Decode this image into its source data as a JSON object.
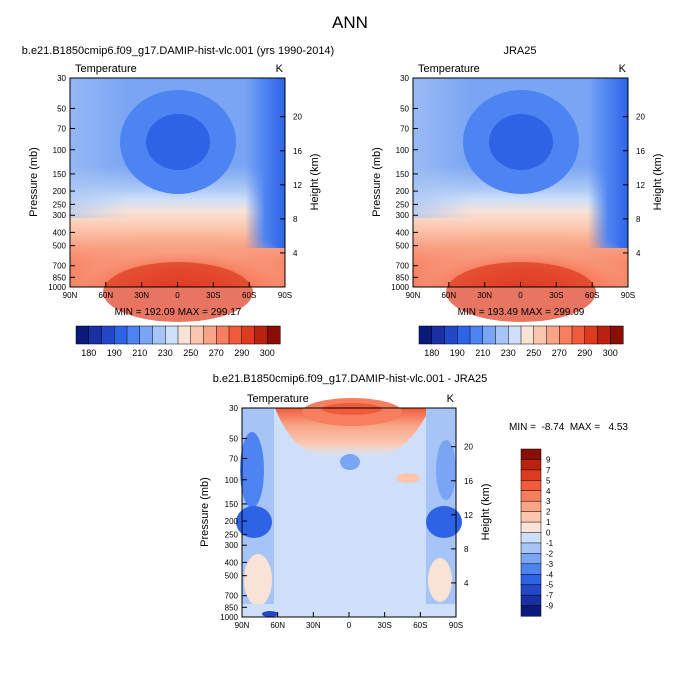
{
  "page": {
    "title": "ANN"
  },
  "chart_data": [
    {
      "type": "heatmap",
      "id": "model",
      "title": "b.e21.B1850cmip6.f09_g17.DAMIP-hist-vlc.001 (yrs 1990-2014)",
      "left_label": "Temperature",
      "right_label": "K",
      "ylabel": "Pressure (mb)",
      "y2label": "Height (km)",
      "x_ticks": [
        "90N",
        "60N",
        "30N",
        "0",
        "30S",
        "60S",
        "90S"
      ],
      "y_ticks": [
        "30",
        "50",
        "70",
        "100",
        "150",
        "200",
        "250",
        "300",
        "400",
        "500",
        "700",
        "850",
        "1000"
      ],
      "y2_ticks": [
        "20",
        "16",
        "12",
        "8",
        "4"
      ],
      "stats": "MIN = 192.09  MAX = 299.17",
      "min": 192.09,
      "max": 299.17,
      "colorbar": {
        "labels": [
          "180",
          "190",
          "210",
          "230",
          "250",
          "270",
          "290",
          "300"
        ],
        "colors": [
          "#0a1a7a",
          "#1a2fa3",
          "#2347c9",
          "#2f63e6",
          "#4d84f2",
          "#7aa5f4",
          "#a6c4f5",
          "#cddff9",
          "#f9e3d6",
          "#fbc6ad",
          "#f9a487",
          "#f77e5e",
          "#f15a3b",
          "#dd3b20",
          "#b8220e",
          "#8a0e06"
        ]
      }
    },
    {
      "type": "heatmap",
      "id": "obs",
      "title": "JRA25",
      "left_label": "Temperature",
      "right_label": "K",
      "ylabel": "Pressure (mb)",
      "y2label": "Height (km)",
      "x_ticks": [
        "90N",
        "60N",
        "30N",
        "0",
        "30S",
        "60S",
        "90S"
      ],
      "y_ticks": [
        "30",
        "50",
        "70",
        "100",
        "150",
        "200",
        "250",
        "300",
        "400",
        "500",
        "700",
        "850",
        "1000"
      ],
      "y2_ticks": [
        "20",
        "16",
        "12",
        "8",
        "4"
      ],
      "stats": "MIN = 193.49  MAX = 299.09",
      "min": 193.49,
      "max": 299.09,
      "colorbar": {
        "labels": [
          "180",
          "190",
          "210",
          "230",
          "250",
          "270",
          "290",
          "300"
        ],
        "colors": [
          "#0a1a7a",
          "#1a2fa3",
          "#2347c9",
          "#2f63e6",
          "#4d84f2",
          "#7aa5f4",
          "#a6c4f5",
          "#cddff9",
          "#f9e3d6",
          "#fbc6ad",
          "#f9a487",
          "#f77e5e",
          "#f15a3b",
          "#dd3b20",
          "#b8220e",
          "#8a0e06"
        ]
      }
    },
    {
      "type": "heatmap",
      "id": "diff",
      "title": "b.e21.B1850cmip6.f09_g17.DAMIP-hist-vlc.001 - JRA25",
      "left_label": "Temperature",
      "right_label": "K",
      "ylabel": "Pressure (mb)",
      "y2label": "Height (km)",
      "x_ticks": [
        "90N",
        "60N",
        "30N",
        "0",
        "30S",
        "60S",
        "90S"
      ],
      "y_ticks": [
        "30",
        "50",
        "70",
        "100",
        "150",
        "200",
        "250",
        "300",
        "400",
        "500",
        "700",
        "850",
        "1000"
      ],
      "y2_ticks": [
        "20",
        "16",
        "12",
        "8",
        "4"
      ],
      "stats": "MIN =  -8.74  MAX =   4.53",
      "min": -8.74,
      "max": 4.53,
      "colorbar": {
        "labels": [
          "9",
          "7",
          "5",
          "4",
          "3",
          "2",
          "1",
          "0",
          "-1",
          "-2",
          "-3",
          "-4",
          "-5",
          "-7",
          "-9"
        ],
        "colors": [
          "#8a0e06",
          "#b8220e",
          "#dd3b20",
          "#f15a3b",
          "#f77e5e",
          "#f9a487",
          "#fbc6ad",
          "#f9e3d6",
          "#cddff9",
          "#a6c4f5",
          "#7aa5f4",
          "#4d84f2",
          "#2f63e6",
          "#2347c9",
          "#1a2fa3",
          "#0a1a7a"
        ]
      }
    }
  ]
}
